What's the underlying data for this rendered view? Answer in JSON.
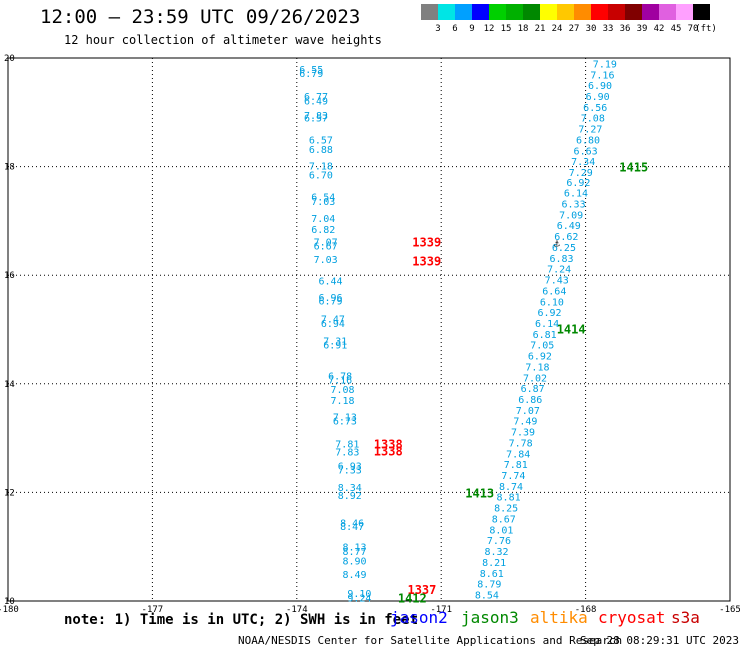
{
  "header": {
    "title": "12:00 — 23:59 UTC 09/26/2023",
    "subtitle": "12 hour collection of altimeter wave heights"
  },
  "color_legend": {
    "unit": "(ft)",
    "bins": [
      {
        "label": "3",
        "color": "#808080"
      },
      {
        "label": "6",
        "color": "#00e5e5"
      },
      {
        "label": "9",
        "color": "#00a0ff"
      },
      {
        "label": "12",
        "color": "#0000ff"
      },
      {
        "label": "15",
        "color": "#00d000"
      },
      {
        "label": "18",
        "color": "#00b000"
      },
      {
        "label": "21",
        "color": "#008800"
      },
      {
        "label": "24",
        "color": "#ffff00"
      },
      {
        "label": "27",
        "color": "#ffc800"
      },
      {
        "label": "30",
        "color": "#ff8c00"
      },
      {
        "label": "33",
        "color": "#ff0000"
      },
      {
        "label": "36",
        "color": "#c80000"
      },
      {
        "label": "39",
        "color": "#800000"
      },
      {
        "label": "42",
        "color": "#a000a0"
      },
      {
        "label": "45",
        "color": "#e060e0"
      },
      {
        "label": "70",
        "color": "#ffa0ff"
      },
      {
        "label": "",
        "color": "#000000"
      }
    ]
  },
  "footer": {
    "note": "note: 1) Time is in UTC; 2) SWH is in feet",
    "satellites": [
      {
        "name": "jason2",
        "color": "#0000ff"
      },
      {
        "name": "jason3",
        "color": "#008800"
      },
      {
        "name": "altika",
        "color": "#ff8c00"
      },
      {
        "name": "cryosat",
        "color": "#ff0000"
      },
      {
        "name": "s3a",
        "color": "#c80000"
      }
    ],
    "credit": "NOAA/NESDIS Center for Satellite Applications and Research",
    "timestamp": "Sep 28 08:29:31 UTC 2023"
  },
  "chart_data": {
    "type": "scatter",
    "title": "12:00 — 23:59 UTC 09/26/2023",
    "xlim": [
      -180,
      -165
    ],
    "ylim": [
      10,
      20
    ],
    "x_ticks": [
      "-180",
      "-177",
      "-174",
      "-171",
      "-168",
      "-165"
    ],
    "y_ticks": [
      "10",
      "12",
      "14",
      "16",
      "18",
      "20"
    ],
    "grid": true,
    "point_color": "#00a0e0",
    "left_track": [
      {
        "lon": -173.7,
        "lat": 19.8,
        "v": "6.55"
      },
      {
        "lon": -173.7,
        "lat": 19.72,
        "v": "6.79"
      },
      {
        "lon": -173.6,
        "lat": 19.3,
        "v": "6.77"
      },
      {
        "lon": -173.6,
        "lat": 19.22,
        "v": "6.49"
      },
      {
        "lon": -173.6,
        "lat": 18.95,
        "v": "7.83"
      },
      {
        "lon": -173.6,
        "lat": 18.9,
        "v": "6.57"
      },
      {
        "lon": -173.5,
        "lat": 18.5,
        "v": "6.57"
      },
      {
        "lon": -173.5,
        "lat": 18.32,
        "v": "6.88"
      },
      {
        "lon": -173.5,
        "lat": 18.02,
        "v": "7.18"
      },
      {
        "lon": -173.5,
        "lat": 17.85,
        "v": "6.70"
      },
      {
        "lon": -173.45,
        "lat": 17.45,
        "v": "6.54"
      },
      {
        "lon": -173.45,
        "lat": 17.37,
        "v": "7.03"
      },
      {
        "lon": -173.45,
        "lat": 17.05,
        "v": "7.04"
      },
      {
        "lon": -173.45,
        "lat": 16.85,
        "v": "6.82"
      },
      {
        "lon": -173.4,
        "lat": 16.62,
        "v": "7.07"
      },
      {
        "lon": -173.4,
        "lat": 16.55,
        "v": "6.67"
      },
      {
        "lon": -173.4,
        "lat": 16.3,
        "v": "7.03"
      },
      {
        "lon": -173.3,
        "lat": 15.9,
        "v": "6.44"
      },
      {
        "lon": -173.3,
        "lat": 15.6,
        "v": "6.96"
      },
      {
        "lon": -173.3,
        "lat": 15.53,
        "v": "6.79"
      },
      {
        "lon": -173.25,
        "lat": 15.2,
        "v": "7.47"
      },
      {
        "lon": -173.25,
        "lat": 15.12,
        "v": "6.94"
      },
      {
        "lon": -173.2,
        "lat": 14.8,
        "v": "7.31"
      },
      {
        "lon": -173.2,
        "lat": 14.72,
        "v": "6.91"
      },
      {
        "lon": -173.1,
        "lat": 14.15,
        "v": "6.78"
      },
      {
        "lon": -173.1,
        "lat": 14.08,
        "v": "7.16"
      },
      {
        "lon": -173.05,
        "lat": 13.9,
        "v": "7.08"
      },
      {
        "lon": -173.05,
        "lat": 13.7,
        "v": "7.18"
      },
      {
        "lon": -173.0,
        "lat": 13.4,
        "v": "7.13"
      },
      {
        "lon": -173.0,
        "lat": 13.32,
        "v": "6.73"
      },
      {
        "lon": -172.95,
        "lat": 12.9,
        "v": "7.81"
      },
      {
        "lon": -172.95,
        "lat": 12.75,
        "v": "7.83"
      },
      {
        "lon": -172.9,
        "lat": 12.5,
        "v": "6.93"
      },
      {
        "lon": -172.9,
        "lat": 12.42,
        "v": "7.33"
      },
      {
        "lon": -172.9,
        "lat": 12.1,
        "v": "8.34"
      },
      {
        "lon": -172.9,
        "lat": 11.95,
        "v": "8.92"
      },
      {
        "lon": -172.85,
        "lat": 11.45,
        "v": "8.46"
      },
      {
        "lon": -172.85,
        "lat": 11.38,
        "v": "8.47"
      },
      {
        "lon": -172.8,
        "lat": 11.0,
        "v": "8.13"
      },
      {
        "lon": -172.8,
        "lat": 10.92,
        "v": "8.77"
      },
      {
        "lon": -172.8,
        "lat": 10.75,
        "v": "8.90"
      },
      {
        "lon": -172.8,
        "lat": 10.5,
        "v": "8.49"
      },
      {
        "lon": -172.7,
        "lat": 10.15,
        "v": "9.10"
      },
      {
        "lon": -172.7,
        "lat": 10.06,
        "v": "9.24"
      }
    ],
    "right_track": [
      {
        "lon": -167.6,
        "lat": 19.9,
        "v": "7.19"
      },
      {
        "lon": -167.65,
        "lat": 19.7,
        "v": "7.16"
      },
      {
        "lon": -167.7,
        "lat": 19.5,
        "v": "6.90"
      },
      {
        "lon": -167.75,
        "lat": 19.3,
        "v": "6.90"
      },
      {
        "lon": -167.8,
        "lat": 19.1,
        "v": "6.56"
      },
      {
        "lon": -167.85,
        "lat": 18.9,
        "v": "7.08"
      },
      {
        "lon": -167.9,
        "lat": 18.7,
        "v": "7.27"
      },
      {
        "lon": -167.95,
        "lat": 18.5,
        "v": "6.80"
      },
      {
        "lon": -168.0,
        "lat": 18.3,
        "v": "6.63"
      },
      {
        "lon": -168.05,
        "lat": 18.1,
        "v": "7.34"
      },
      {
        "lon": -168.1,
        "lat": 17.9,
        "v": "7.29"
      },
      {
        "lon": -168.15,
        "lat": 17.72,
        "v": "6.92"
      },
      {
        "lon": -168.2,
        "lat": 17.52,
        "v": "6.14"
      },
      {
        "lon": -168.25,
        "lat": 17.32,
        "v": "6.33"
      },
      {
        "lon": -168.3,
        "lat": 17.12,
        "v": "7.09"
      },
      {
        "lon": -168.35,
        "lat": 16.92,
        "v": "6.49"
      },
      {
        "lon": -168.4,
        "lat": 16.72,
        "v": "6.62"
      },
      {
        "lon": -168.45,
        "lat": 16.52,
        "v": "6.25"
      },
      {
        "lon": -168.5,
        "lat": 16.32,
        "v": "6.83"
      },
      {
        "lon": -168.55,
        "lat": 16.12,
        "v": "7.24"
      },
      {
        "lon": -168.6,
        "lat": 15.92,
        "v": "7.43"
      },
      {
        "lon": -168.65,
        "lat": 15.72,
        "v": "6.64"
      },
      {
        "lon": -168.7,
        "lat": 15.52,
        "v": "6.10"
      },
      {
        "lon": -168.75,
        "lat": 15.32,
        "v": "6.92"
      },
      {
        "lon": -168.8,
        "lat": 15.12,
        "v": "6.14"
      },
      {
        "lon": -168.85,
        "lat": 14.92,
        "v": "6.81"
      },
      {
        "lon": -168.9,
        "lat": 14.72,
        "v": "7.05"
      },
      {
        "lon": -168.95,
        "lat": 14.52,
        "v": "6.92"
      },
      {
        "lon": -169.0,
        "lat": 14.32,
        "v": "7.18"
      },
      {
        "lon": -169.05,
        "lat": 14.12,
        "v": "7.02"
      },
      {
        "lon": -169.1,
        "lat": 13.92,
        "v": "6.87"
      },
      {
        "lon": -169.15,
        "lat": 13.72,
        "v": "6.86"
      },
      {
        "lon": -169.2,
        "lat": 13.52,
        "v": "7.07"
      },
      {
        "lon": -169.25,
        "lat": 13.32,
        "v": "7.49"
      },
      {
        "lon": -169.3,
        "lat": 13.12,
        "v": "7.39"
      },
      {
        "lon": -169.35,
        "lat": 12.92,
        "v": "7.78"
      },
      {
        "lon": -169.4,
        "lat": 12.72,
        "v": "7.84"
      },
      {
        "lon": -169.45,
        "lat": 12.52,
        "v": "7.81"
      },
      {
        "lon": -169.5,
        "lat": 12.32,
        "v": "7.74"
      },
      {
        "lon": -169.55,
        "lat": 12.12,
        "v": "8.74"
      },
      {
        "lon": -169.6,
        "lat": 11.92,
        "v": "8.81"
      },
      {
        "lon": -169.65,
        "lat": 11.72,
        "v": "8.25"
      },
      {
        "lon": -169.7,
        "lat": 11.52,
        "v": "8.67"
      },
      {
        "lon": -169.75,
        "lat": 11.32,
        "v": "8.01"
      },
      {
        "lon": -169.8,
        "lat": 11.12,
        "v": "7.76"
      },
      {
        "lon": -169.85,
        "lat": 10.92,
        "v": "8.32"
      },
      {
        "lon": -169.9,
        "lat": 10.72,
        "v": "8.21"
      },
      {
        "lon": -169.95,
        "lat": 10.52,
        "v": "8.61"
      },
      {
        "lon": -170.0,
        "lat": 10.32,
        "v": "8.79"
      },
      {
        "lon": -170.05,
        "lat": 10.12,
        "v": "8.54"
      }
    ],
    "time_labels": [
      {
        "lon": -167.0,
        "lat": 17.98,
        "text": "1415",
        "color": "#008800"
      },
      {
        "lon": -171.3,
        "lat": 16.6,
        "text": "1339",
        "color": "#ff0000"
      },
      {
        "lon": -171.3,
        "lat": 16.25,
        "text": "1339",
        "color": "#ff0000"
      },
      {
        "lon": -168.3,
        "lat": 15.0,
        "text": "1414",
        "color": "#008800"
      },
      {
        "lon": -172.1,
        "lat": 12.88,
        "text": "1338",
        "color": "#ff0000"
      },
      {
        "lon": -172.1,
        "lat": 12.75,
        "text": "1338",
        "color": "#ff0000"
      },
      {
        "lon": -170.2,
        "lat": 11.98,
        "text": "1413",
        "color": "#008800"
      },
      {
        "lon": -171.4,
        "lat": 10.2,
        "text": "1337",
        "color": "#ff0000"
      },
      {
        "lon": -171.6,
        "lat": 10.05,
        "text": "1412",
        "color": "#008800"
      }
    ],
    "markers": [
      {
        "lon": -168.6,
        "lat": 16.6,
        "symbol": "⚓"
      }
    ]
  }
}
